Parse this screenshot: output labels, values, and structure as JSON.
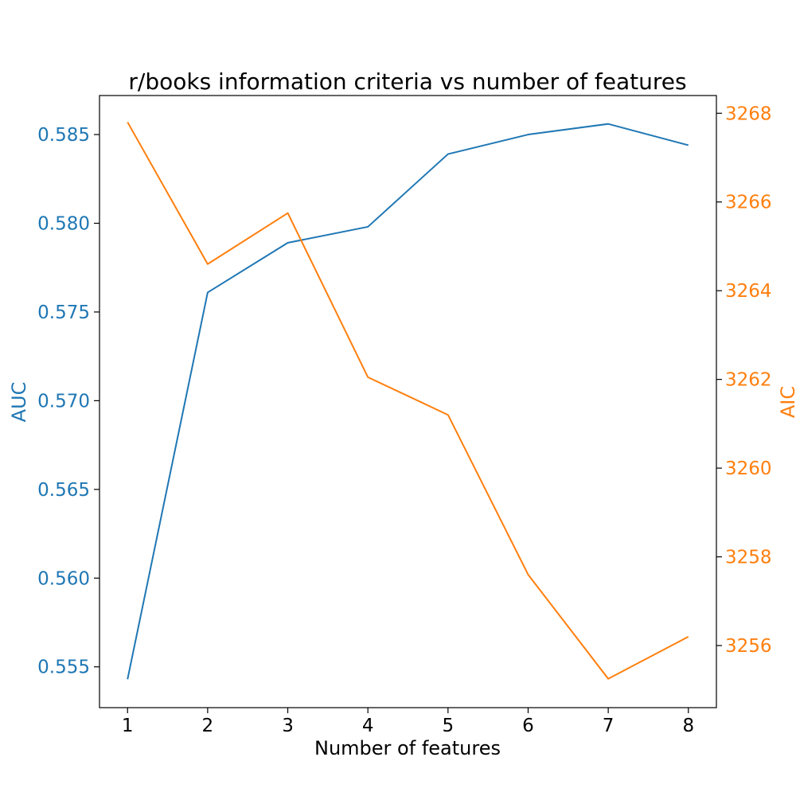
{
  "chart_data": {
    "type": "line",
    "title": "r/books information criteria vs number of features",
    "xlabel": "Number of features",
    "ylabel_left": "AUC",
    "ylabel_right": "AIC",
    "x": [
      1,
      2,
      3,
      4,
      5,
      6,
      7,
      8
    ],
    "xlim": [
      0.65,
      8.35
    ],
    "xticks": [
      1,
      2,
      3,
      4,
      5,
      6,
      7,
      8
    ],
    "grid": false,
    "legend": "none",
    "series": [
      {
        "axis": "left",
        "color": "#1f77b4",
        "values": [
          0.5543,
          0.5761,
          0.5789,
          0.5798,
          0.5839,
          0.585,
          0.5856,
          0.5844
        ]
      },
      {
        "axis": "right",
        "color": "#ff7f0e",
        "values": [
          3267.8,
          3264.6,
          3265.75,
          3262.05,
          3261.2,
          3257.6,
          3255.25,
          3256.2
        ]
      }
    ],
    "y_left": {
      "lim": [
        0.5527,
        0.5872
      ],
      "ticks": [
        0.555,
        0.56,
        0.565,
        0.57,
        0.575,
        0.58,
        0.585
      ],
      "tick_labels": [
        "0.555",
        "0.560",
        "0.565",
        "0.570",
        "0.575",
        "0.580",
        "0.585"
      ],
      "color": "#1f77b4"
    },
    "y_right": {
      "lim": [
        3254.6,
        3268.4
      ],
      "ticks": [
        3256,
        3258,
        3260,
        3262,
        3264,
        3266,
        3268
      ],
      "tick_labels": [
        "3256",
        "3258",
        "3260",
        "3262",
        "3264",
        "3266",
        "3268"
      ],
      "color": "#ff7f0e"
    }
  }
}
